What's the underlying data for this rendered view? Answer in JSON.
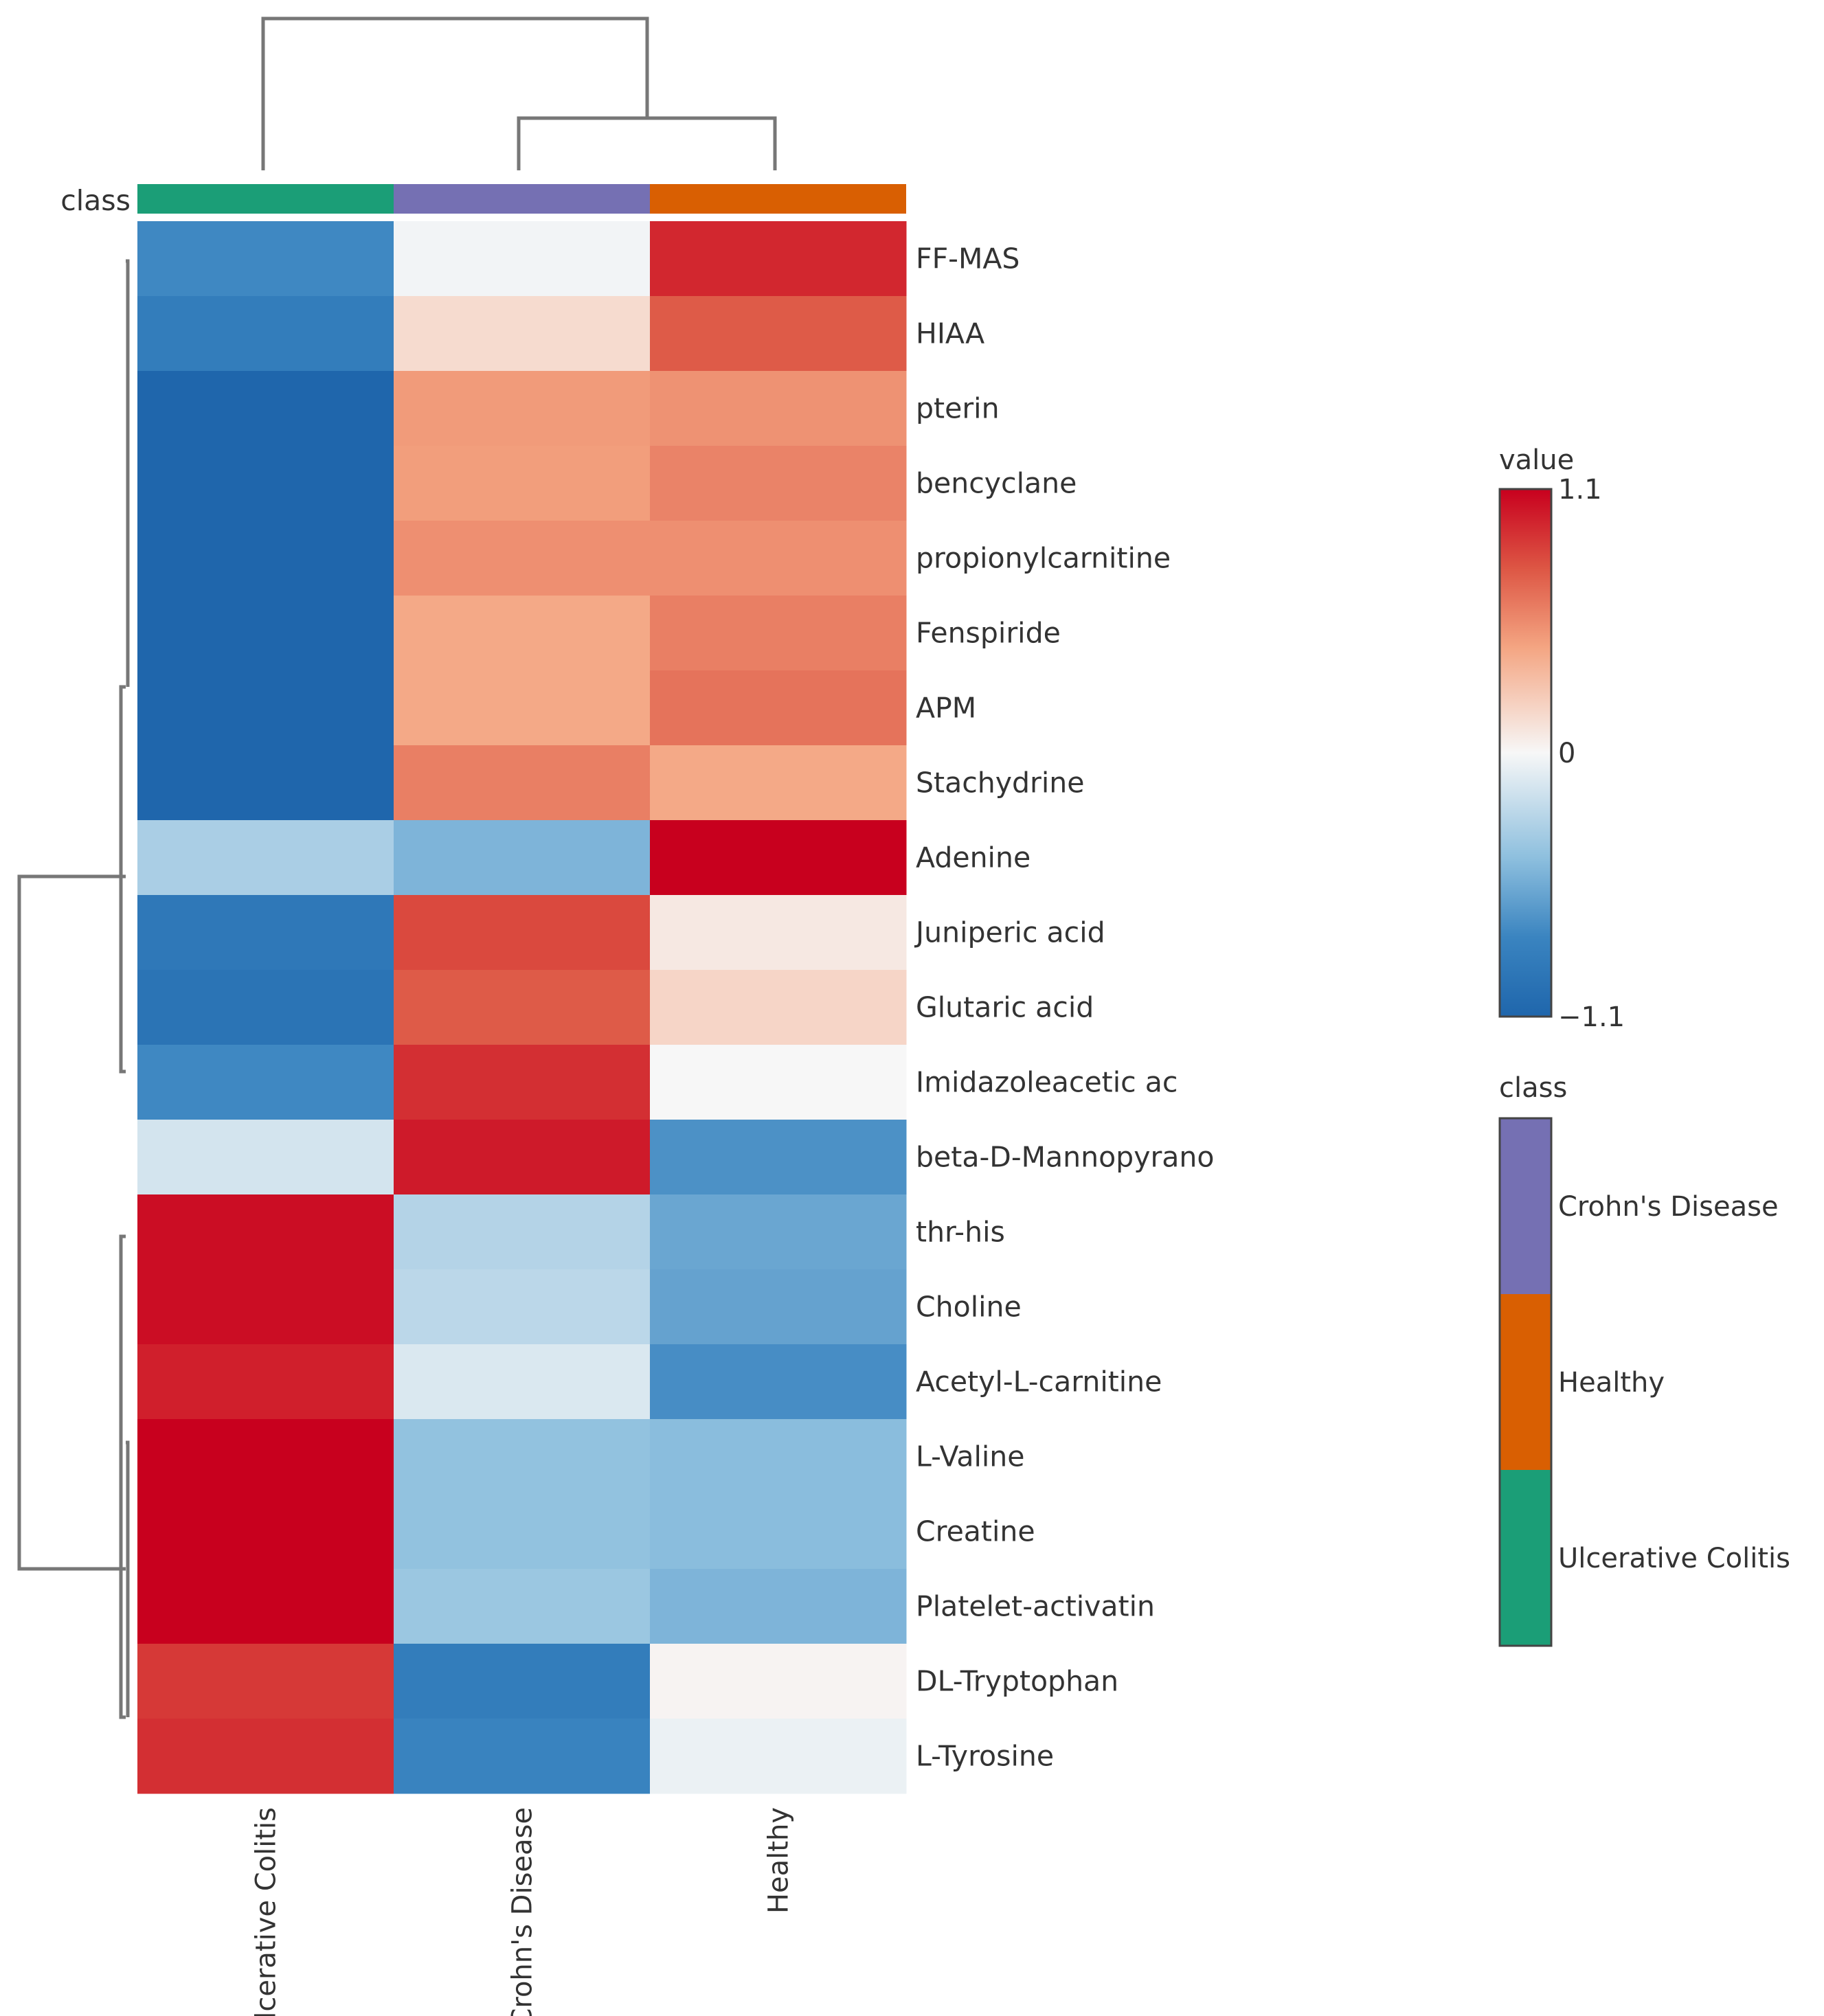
{
  "chart_data": {
    "type": "heatmap",
    "title": "",
    "xlabel": "",
    "ylabel": "",
    "columns": [
      "Ulcerative Colitis",
      "Crohn's Disease",
      "Healthy"
    ],
    "rows": [
      "FF-MAS",
      "HIAA",
      "pterin",
      "bencyclane",
      "propionylcarnitine",
      "Fenspiride",
      "APM",
      "Stachydrine",
      "Adenine",
      "Juniperic acid",
      "Glutaric acid",
      "Imidazoleacetic ac",
      "beta-D-Mannopyrano",
      "thr-his",
      "Choline",
      "Acetyl-L-carnitine",
      "L-Valine",
      "Creatine",
      "Platelet-activatin",
      "DL-Tryptophan",
      "L-Tyrosine"
    ],
    "values": [
      [
        -0.75,
        -0.02,
        0.95
      ],
      [
        -0.85,
        0.15,
        0.75
      ],
      [
        -1.1,
        0.48,
        0.52
      ],
      [
        -1.1,
        0.47,
        0.58
      ],
      [
        -1.1,
        0.53,
        0.53
      ],
      [
        -1.1,
        0.42,
        0.6
      ],
      [
        -1.1,
        0.42,
        0.65
      ],
      [
        -1.1,
        0.6,
        0.42
      ],
      [
        -0.32,
        -0.5,
        1.1
      ],
      [
        -0.9,
        0.82,
        0.08
      ],
      [
        -0.95,
        0.75,
        0.18
      ],
      [
        -0.75,
        0.92,
        0.0
      ],
      [
        -0.15,
        1.0,
        -0.7
      ],
      [
        1.05,
        -0.28,
        -0.58
      ],
      [
        1.05,
        -0.25,
        -0.6
      ],
      [
        0.98,
        -0.12,
        -0.72
      ],
      [
        1.1,
        -0.42,
        -0.45
      ],
      [
        1.1,
        -0.42,
        -0.45
      ],
      [
        1.1,
        -0.38,
        -0.5
      ],
      [
        0.88,
        -0.85,
        0.02
      ],
      [
        0.92,
        -0.78,
        -0.05
      ]
    ],
    "class_annotation": {
      "label": "class",
      "values": [
        "Ulcerative Colitis",
        "Crohn's Disease",
        "Healthy"
      ]
    },
    "colorbar": {
      "title": "value",
      "min": -1.1,
      "max": 1.1,
      "tick_labels": [
        "1.1",
        "0",
        "−1.1"
      ],
      "low_color": "#1f66ac",
      "mid_color": "#f7f7f7",
      "high_color": "#c8001e"
    },
    "class_legend": {
      "title": "class",
      "items": [
        {
          "label": "Crohn's Disease",
          "color": "#7570b3"
        },
        {
          "label": "Healthy",
          "color": "#d95f02"
        },
        {
          "label": "Ulcerative Colitis",
          "color": "#1b9e77"
        }
      ]
    },
    "legend_position": "right",
    "grid": false
  }
}
